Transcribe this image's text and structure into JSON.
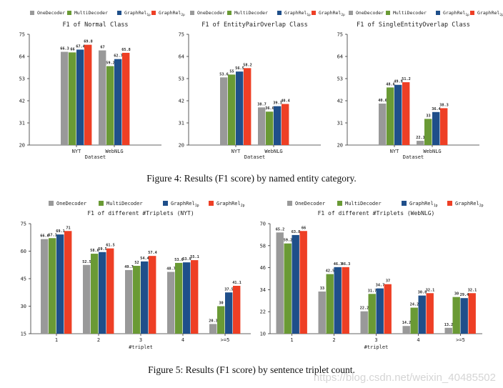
{
  "series_names": [
    "OneDecoder",
    "MultiDecoder",
    "GraphRel1p",
    "GraphRel2p"
  ],
  "series_label_parts": [
    {
      "base": "OneDecoder",
      "sub": ""
    },
    {
      "base": "MultiDecoder",
      "sub": ""
    },
    {
      "base": "GraphRel",
      "sub": "1p"
    },
    {
      "base": "GraphRel",
      "sub": "2p"
    }
  ],
  "colors": [
    "#999999",
    "#6a9a35",
    "#1f4f8a",
    "#ee3f25"
  ],
  "captions": {
    "figure4": "Figure 4: Results (F1 score) by named entity category.",
    "figure5": "Figure 5: Results (F1 score) by sentence triplet count."
  },
  "watermark": "https://blog.csdn.net/weixin_40485502",
  "chart_data": [
    {
      "type": "bar",
      "title": "F1 of Normal Class",
      "xlabel": "Dataset",
      "categories": [
        "NYT",
        "WebNLG"
      ],
      "yticks": [
        20,
        31,
        42,
        53,
        64,
        75
      ],
      "ylim": [
        20,
        75
      ],
      "series": [
        {
          "name": "OneDecoder",
          "values": [
            66.3,
            67
          ]
        },
        {
          "name": "MultiDecoder",
          "values": [
            66,
            59.2
          ]
        },
        {
          "name": "GraphRel1p",
          "values": [
            67.4,
            62.7
          ]
        },
        {
          "name": "GraphRel2p",
          "values": [
            69.8,
            65.8
          ]
        }
      ]
    },
    {
      "type": "bar",
      "title": "F1 of EntityPairOverlap Class",
      "xlabel": "Dataset",
      "categories": [
        "NYT",
        "WebNLG"
      ],
      "yticks": [
        20,
        31,
        42,
        53,
        64,
        75
      ],
      "ylim": [
        20,
        75
      ],
      "series": [
        {
          "name": "OneDecoder",
          "values": [
            53.6,
            38.7
          ]
        },
        {
          "name": "MultiDecoder",
          "values": [
            55,
            36.6
          ]
        },
        {
          "name": "GraphRel1p",
          "values": [
            56.5,
            39.3
          ]
        },
        {
          "name": "GraphRel2p",
          "values": [
            58.2,
            40.4
          ]
        }
      ]
    },
    {
      "type": "bar",
      "title": "F1 of SingleEntityOverlap Class",
      "xlabel": "Dataset",
      "categories": [
        "NYT",
        "WebNLG"
      ],
      "yticks": [
        20,
        31,
        42,
        53,
        64,
        75
      ],
      "ylim": [
        20,
        75
      ],
      "series": [
        {
          "name": "OneDecoder",
          "values": [
            40.6,
            22.1
          ]
        },
        {
          "name": "MultiDecoder",
          "values": [
            48.6,
            33
          ]
        },
        {
          "name": "GraphRel1p",
          "values": [
            49.9,
            36.4
          ]
        },
        {
          "name": "GraphRel2p",
          "values": [
            51.2,
            38.3
          ]
        }
      ]
    },
    {
      "type": "bar",
      "title": "F1 of different #Triplets (NYT)",
      "xlabel": "#triplet",
      "categories": [
        "1",
        "2",
        "3",
        "4",
        ">=5"
      ],
      "yticks": [
        15,
        30,
        45,
        60,
        75
      ],
      "ylim": [
        15,
        75
      ],
      "series": [
        {
          "name": "OneDecoder",
          "values": [
            66.6,
            52.5,
            49.7,
            48.7,
            20.3
          ]
        },
        {
          "name": "MultiDecoder",
          "values": [
            67.1,
            58.6,
            52,
            53.6,
            30
          ]
        },
        {
          "name": "GraphRel1p",
          "values": [
            69.1,
            59.5,
            54.4,
            53.9,
            37.5
          ]
        },
        {
          "name": "GraphRel2p",
          "values": [
            71,
            61.5,
            57.4,
            55.1,
            41.1
          ]
        }
      ]
    },
    {
      "type": "bar",
      "title": "F1 of different #Triplets (WebNLG)",
      "xlabel": "#triplet",
      "categories": [
        "1",
        "2",
        "3",
        "4",
        ">=5"
      ],
      "yticks": [
        10,
        22,
        34,
        46,
        58,
        70
      ],
      "ylim": [
        10,
        70
      ],
      "series": [
        {
          "name": "OneDecoder",
          "values": [
            65.2,
            33,
            22.2,
            14.2,
            13.2
          ]
        },
        {
          "name": "MultiDecoder",
          "values": [
            59.2,
            42.5,
            31.7,
            24.2,
            30
          ]
        },
        {
          "name": "GraphRel1p",
          "values": [
            63.8,
            46.3,
            34.7,
            30.8,
            29.4
          ]
        },
        {
          "name": "GraphRel2p",
          "values": [
            66,
            46.3,
            37,
            32.1,
            32.1
          ]
        }
      ]
    }
  ]
}
